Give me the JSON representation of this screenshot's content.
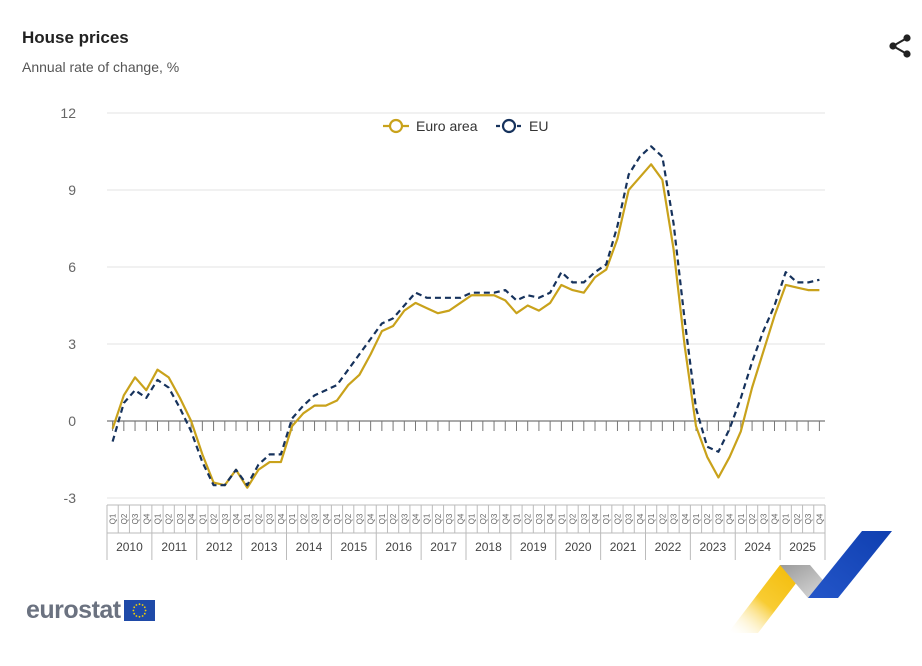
{
  "header": {
    "title": "House prices",
    "subtitle": "Annual rate of change, %"
  },
  "share": {
    "icon": "share-icon"
  },
  "logo": {
    "text": "eurostat",
    "icon": "eu-flag-icon"
  },
  "colors": {
    "euro_area": "#c9a21b",
    "eu": "#16325c",
    "grid": "#e3e3e3",
    "axis": "#666666"
  },
  "chart_data": {
    "type": "line",
    "legend_position": "top-center",
    "ylim": [
      -3,
      12
    ],
    "yticks": [
      "-3",
      "0",
      "3",
      "6",
      "9",
      "12"
    ],
    "quarter_labels": [
      "Q1",
      "Q2",
      "Q3",
      "Q4"
    ],
    "years": [
      "2010",
      "2011",
      "2012",
      "2013",
      "2014",
      "2015",
      "2016",
      "2017",
      "2018",
      "2019",
      "2020",
      "2021",
      "2022",
      "2023",
      "2024",
      "2025"
    ],
    "series": [
      {
        "name": "Euro area",
        "style": "solid",
        "values": [
          -0.3,
          1.0,
          1.7,
          1.2,
          2.0,
          1.7,
          0.9,
          0.0,
          -1.3,
          -2.4,
          -2.5,
          -1.9,
          -2.6,
          -1.9,
          -1.6,
          -1.6,
          -0.2,
          0.3,
          0.6,
          0.6,
          0.8,
          1.4,
          1.8,
          2.6,
          3.5,
          3.7,
          4.3,
          4.6,
          4.4,
          4.2,
          4.3,
          4.6,
          4.9,
          4.9,
          4.9,
          4.7,
          4.2,
          4.5,
          4.3,
          4.6,
          5.3,
          5.1,
          5.0,
          5.6,
          5.9,
          7.1,
          9.0,
          9.5,
          10.0,
          9.4,
          6.7,
          2.9,
          -0.2,
          -1.4,
          -2.2,
          -1.4,
          -0.4,
          1.3,
          2.7,
          4.1,
          5.3,
          5.2,
          5.1,
          5.1
        ]
      },
      {
        "name": "EU",
        "style": "dashed",
        "values": [
          -0.8,
          0.7,
          1.2,
          0.9,
          1.6,
          1.3,
          0.5,
          -0.4,
          -1.6,
          -2.5,
          -2.5,
          -1.9,
          -2.5,
          -1.7,
          -1.3,
          -1.3,
          0.1,
          0.6,
          1.0,
          1.2,
          1.4,
          2.0,
          2.6,
          3.2,
          3.8,
          4.0,
          4.5,
          5.0,
          4.8,
          4.8,
          4.8,
          4.8,
          5.0,
          5.0,
          5.0,
          5.1,
          4.7,
          4.9,
          4.8,
          5.0,
          5.8,
          5.4,
          5.4,
          5.8,
          6.1,
          7.6,
          9.6,
          10.3,
          10.7,
          10.3,
          7.7,
          3.9,
          0.5,
          -1.0,
          -1.2,
          -0.3,
          0.9,
          2.3,
          3.5,
          4.5,
          5.8,
          5.4,
          5.4,
          5.5
        ]
      }
    ]
  }
}
